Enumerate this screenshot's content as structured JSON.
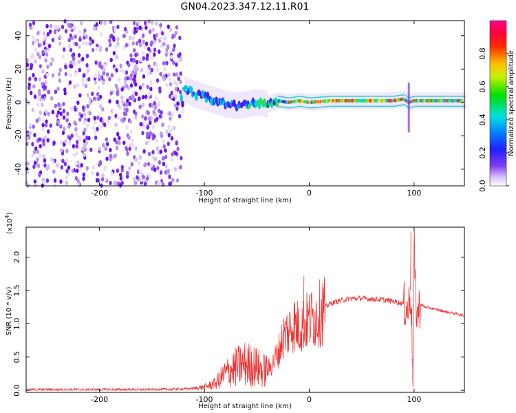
{
  "figure": {
    "title": "GN04.2023.347.12.11.R01",
    "colors": {
      "axes": "#000000",
      "snr_line": "#ee3333",
      "background": "#ffffff"
    }
  },
  "chart_data": [
    {
      "type": "heatmap",
      "title": "",
      "xlabel": "Height of straight line (km)",
      "ylabel": "Frequency (Hz)",
      "xlim": [
        -270,
        148
      ],
      "ylim": [
        -50,
        49
      ],
      "x_ticks": [
        -200,
        -100,
        0,
        100
      ],
      "y_ticks": [
        -40,
        -20,
        0,
        20,
        40
      ],
      "grid": false,
      "colorbar": {
        "label": "Normalized spectral amplitude",
        "range": [
          0.0,
          1.0
        ],
        "ticks": [
          "0.0",
          "0.2",
          "0.4",
          "0.6",
          "0.8"
        ],
        "colormap": "rainbow (violet → blue → cyan → green → yellow → red → magenta)"
      },
      "regions": [
        {
          "name": "noise",
          "x_range": [
            -270,
            -122
          ],
          "freq_range": [
            -50,
            49
          ],
          "amplitude": "low (~0.1–0.3), scattered"
        },
        {
          "name": "signal",
          "x_range": [
            -122,
            148
          ],
          "center_freq_hz": [
            [
              -120,
              8
            ],
            [
              -110,
              5
            ],
            [
              -100,
              3
            ],
            [
              -90,
              1
            ],
            [
              -80,
              -1
            ],
            [
              -70,
              -2
            ],
            [
              -60,
              -1
            ],
            [
              -50,
              0
            ],
            [
              -40,
              -1
            ],
            [
              -30,
              1
            ],
            [
              -20,
              0
            ],
            [
              -10,
              1
            ],
            [
              0,
              0
            ],
            [
              20,
              1
            ],
            [
              40,
              1
            ],
            [
              60,
              1
            ],
            [
              80,
              1
            ],
            [
              90,
              2
            ],
            [
              95,
              0
            ],
            [
              100,
              1
            ],
            [
              120,
              1
            ],
            [
              148,
              1
            ]
          ],
          "amplitude": "high (~0.6–1.0) for x > -40"
        }
      ]
    },
    {
      "type": "line",
      "title": "",
      "xlabel": "Height of straight line (km)",
      "ylabel": "SNR (10 * v/v)",
      "y_multiplier": "(x10",
      "y_multiplier_exp": "4",
      "xlim": [
        -270,
        148
      ],
      "ylim": [
        -0.03,
        2.45
      ],
      "x_ticks": [
        -200,
        -100,
        0,
        100
      ],
      "y_ticks": [
        "0.0",
        "0.5",
        "1.0",
        "1.5",
        "2.0"
      ],
      "grid": false,
      "series": [
        {
          "color": "#ee3333",
          "x": [
            -270,
            -200,
            -150,
            -120,
            -110,
            -100,
            -90,
            -80,
            -70,
            -60,
            -50,
            -45,
            -40,
            -35,
            -30,
            -25,
            -20,
            -15,
            -10,
            -5,
            0,
            5,
            10,
            15,
            20,
            30,
            40,
            50,
            60,
            70,
            75,
            80,
            85,
            90,
            94,
            97,
            99,
            100,
            101,
            103,
            106,
            110,
            120,
            130,
            140,
            148
          ],
          "y": [
            0.01,
            0.01,
            0.01,
            0.02,
            0.03,
            0.05,
            0.1,
            0.25,
            0.35,
            0.4,
            0.35,
            0.3,
            0.3,
            0.4,
            0.55,
            0.8,
            0.9,
            1.0,
            0.95,
            1.0,
            1.05,
            1.1,
            1.15,
            1.25,
            1.3,
            1.35,
            1.38,
            1.38,
            1.37,
            1.36,
            1.35,
            1.34,
            1.32,
            1.3,
            1.2,
            1.5,
            0.2,
            2.3,
            1.5,
            1.1,
            1.3,
            1.25,
            1.22,
            1.18,
            1.15,
            1.12
          ]
        }
      ],
      "annotations": [
        {
          "x": -5,
          "y": 1.72
        },
        {
          "x": 97,
          "y": 2.38
        },
        {
          "x": 99,
          "y": 0.05
        }
      ]
    }
  ]
}
